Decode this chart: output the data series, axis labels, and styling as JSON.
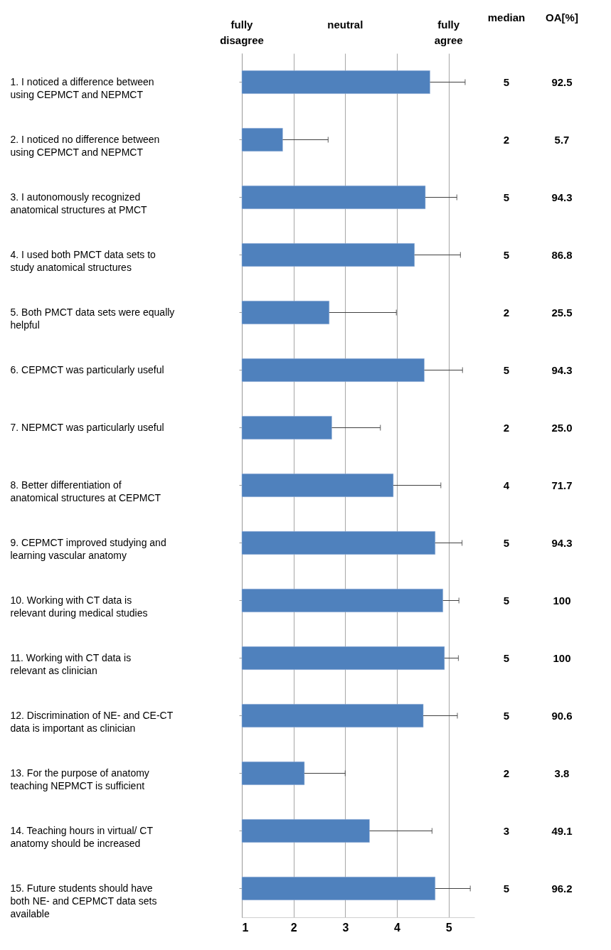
{
  "chart_data": [
    {
      "type": "bar",
      "orientation": "horizontal",
      "color": "#4f81bd",
      "grid": "x",
      "xlim": [
        1,
        5.5
      ],
      "xticks": [
        1,
        2,
        3,
        4,
        5
      ],
      "annotations": [
        "fully disagree",
        "neutral",
        "fully agree"
      ],
      "categories": [
        "1. I noticed a difference between using CEPMCT and NEPMCT",
        "2. I noticed no difference between using CEPMCT and NEPMCT",
        "3. I autonomously recognized anatomical structures at PMCT",
        "4. I used both PMCT data sets to study anatomical structures",
        "5. Both PMCT data sets were equally helpful",
        "6. CEPMCT was particularly useful",
        "7. NEPMCT was particularly useful",
        "8. Better differentiation of anatomical structures at CEPMCT",
        "9. CEPMCT improved studying and learning vascular anatomy",
        "10. Working with CT data is relevant during medical studies",
        "11. Working with CT data is relevant as  clinician",
        "12. Discrimination of NE- and CE-CT data is important as clinician",
        "13. For the purpose of anatomy teaching NEPMCT is sufficient",
        "14. Teaching hours in virtual/ CT anatomy should be increased",
        "15. Future students should have both NE- and CEPMCT data sets available"
      ],
      "values": [
        4.64,
        1.79,
        4.55,
        4.34,
        2.69,
        4.53,
        2.74,
        3.93,
        4.74,
        4.89,
        4.92,
        4.51,
        2.21,
        3.47,
        4.74
      ],
      "errors": [
        [
          4.64,
          5.32
        ],
        [
          1.79,
          2.67
        ],
        [
          4.55,
          5.16
        ],
        [
          4.34,
          5.23
        ],
        [
          2.69,
          3.99
        ],
        [
          4.53,
          5.27
        ],
        [
          2.74,
          3.68
        ],
        [
          3.93,
          4.85
        ],
        [
          4.74,
          5.26
        ],
        [
          4.89,
          5.2
        ],
        [
          4.92,
          5.19
        ],
        [
          4.51,
          5.17
        ],
        [
          2.21,
          3.0
        ],
        [
          3.47,
          4.68
        ],
        [
          4.74,
          5.42
        ]
      ]
    },
    {
      "type": "other",
      "title": "median",
      "data_labels": true,
      "values": [
        5,
        2,
        5,
        5,
        2,
        5,
        2,
        4,
        5,
        5,
        5,
        5,
        2,
        3,
        5
      ]
    },
    {
      "type": "other",
      "title": "OA[%]",
      "values": [
        92.5,
        5.7,
        94.3,
        86.8,
        25.5,
        94.3,
        25,
        71.7,
        94.3,
        100,
        100,
        90.6,
        3.8,
        49.1,
        96.2
      ],
      "value_labels": [
        "92.5",
        "5.7",
        "94.3",
        "86.8",
        "25.5",
        "94.3",
        "25.0",
        "71.7",
        "94.3",
        "100",
        "100",
        "90.6",
        "3.8",
        "49.1",
        "96.2"
      ]
    }
  ]
}
